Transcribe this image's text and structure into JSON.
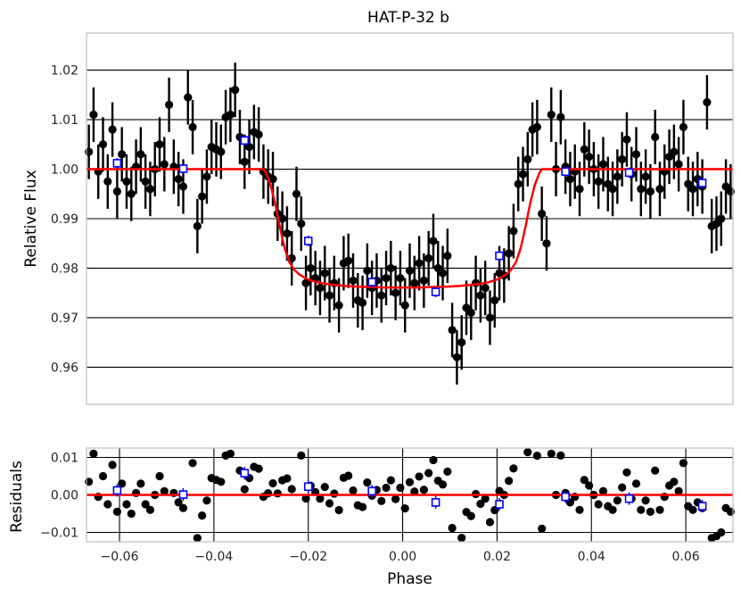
{
  "chart_data": [
    {
      "type": "scatter",
      "title": "HAT-P-32 b",
      "xlabel": "",
      "ylabel": "Relative Flux",
      "xlim": [
        -0.067,
        0.07
      ],
      "ylim": [
        0.9525,
        1.0275
      ],
      "yticks": [
        0.96,
        0.97,
        0.98,
        0.99,
        1.0,
        1.01,
        1.02
      ],
      "ytick_labels": [
        "0.96",
        "0.97",
        "0.98",
        "0.99",
        "1.00",
        "1.01",
        "1.02"
      ],
      "grid": "horizontal",
      "legend": "none",
      "colors": {
        "data": "#000000",
        "binned": "#0000ff",
        "model": "#ff0000",
        "grid": "#000000",
        "frame": "#bfbfbf"
      },
      "model": {
        "name": "",
        "baseline": 1.0,
        "x": [
          -0.067,
          -0.0295,
          -0.029,
          -0.028,
          -0.027,
          -0.026,
          -0.025,
          -0.024,
          -0.023,
          -0.022,
          -0.021,
          -0.02,
          -0.018,
          -0.016,
          -0.014,
          -0.012,
          -0.01,
          -0.008,
          -0.006,
          -0.004,
          -0.002,
          0.0,
          0.002,
          0.004,
          0.006,
          0.008,
          0.01,
          0.012,
          0.014,
          0.016,
          0.018,
          0.02,
          0.021,
          0.022,
          0.023,
          0.024,
          0.025,
          0.026,
          0.027,
          0.028,
          0.029,
          0.0295,
          0.07
        ],
        "y": [
          1.0,
          1.0,
          0.9993,
          0.9968,
          0.993,
          0.9882,
          0.984,
          0.9812,
          0.9797,
          0.9788,
          0.9782,
          0.9777,
          0.9771,
          0.9768,
          0.9766,
          0.9764,
          0.9763,
          0.9762,
          0.9762,
          0.9761,
          0.9761,
          0.9761,
          0.9761,
          0.9761,
          0.9762,
          0.9762,
          0.9763,
          0.9764,
          0.9766,
          0.9768,
          0.9771,
          0.9777,
          0.9782,
          0.9788,
          0.9797,
          0.9812,
          0.984,
          0.9882,
          0.993,
          0.9968,
          0.9993,
          1.0,
          1.0
        ]
      },
      "binned": {
        "x": [
          -0.0605,
          -0.0465,
          -0.0335,
          -0.02,
          -0.0065,
          0.007,
          0.0205,
          0.0345,
          0.048,
          0.0635
        ],
        "y": [
          1.0012,
          1.0001,
          1.0058,
          0.9855,
          0.9772,
          0.9752,
          0.9825,
          0.9995,
          0.9993,
          0.9972
        ],
        "err": [
          0.0005,
          0.0005,
          0.0005,
          0.0005,
          0.0005,
          0.0005,
          0.0005,
          0.0005,
          0.0005,
          0.0005
        ]
      },
      "points": {
        "x": [
          -0.0665,
          -0.0655,
          -0.0645,
          -0.0635,
          -0.0625,
          -0.0615,
          -0.0605,
          -0.0595,
          -0.0585,
          -0.0575,
          -0.0565,
          -0.0555,
          -0.0545,
          -0.0535,
          -0.0525,
          -0.0515,
          -0.0505,
          -0.0495,
          -0.0485,
          -0.0475,
          -0.0465,
          -0.0455,
          -0.0445,
          -0.0435,
          -0.0425,
          -0.0415,
          -0.0405,
          -0.0395,
          -0.0385,
          -0.0375,
          -0.0365,
          -0.0355,
          -0.0345,
          -0.0335,
          -0.0325,
          -0.0315,
          -0.0305,
          -0.0295,
          -0.0285,
          -0.0275,
          -0.0265,
          -0.0255,
          -0.0245,
          -0.0235,
          -0.0225,
          -0.0215,
          -0.0205,
          -0.0195,
          -0.0185,
          -0.0175,
          -0.0165,
          -0.0155,
          -0.0145,
          -0.0135,
          -0.0125,
          -0.0115,
          -0.0105,
          -0.0095,
          -0.0085,
          -0.0075,
          -0.0065,
          -0.0055,
          -0.0045,
          -0.0035,
          -0.0025,
          -0.0015,
          -0.0005,
          0.0005,
          0.0015,
          0.0025,
          0.0035,
          0.0045,
          0.0055,
          0.0065,
          0.0075,
          0.0085,
          0.0095,
          0.0105,
          0.0115,
          0.0125,
          0.0135,
          0.0145,
          0.0155,
          0.0165,
          0.0175,
          0.0185,
          0.0195,
          0.0205,
          0.0215,
          0.0225,
          0.0235,
          0.0245,
          0.0255,
          0.0265,
          0.0275,
          0.0285,
          0.0295,
          0.0305,
          0.0315,
          0.0325,
          0.0335,
          0.0345,
          0.0355,
          0.0365,
          0.0375,
          0.0385,
          0.0395,
          0.0405,
          0.0415,
          0.0425,
          0.0435,
          0.0445,
          0.0455,
          0.0465,
          0.0475,
          0.0485,
          0.0495,
          0.0505,
          0.0515,
          0.0525,
          0.0535,
          0.0545,
          0.0555,
          0.0565,
          0.0575,
          0.0585,
          0.0595,
          0.0605,
          0.0615,
          0.0625,
          0.0635,
          0.0645,
          0.0655,
          0.0665,
          0.0675,
          0.0685,
          0.0695
        ],
        "y": [
          1.0035,
          1.011,
          0.9995,
          1.005,
          0.9975,
          1.008,
          0.9955,
          1.003,
          0.9975,
          0.995,
          1.0005,
          1.003,
          0.9975,
          0.996,
          1.0,
          1.005,
          1.001,
          1.013,
          1.0005,
          0.998,
          0.9965,
          1.0145,
          1.0085,
          0.9885,
          0.9945,
          0.9985,
          1.0045,
          1.004,
          1.0035,
          1.0105,
          1.011,
          1.016,
          1.0065,
          1.0015,
          1.0045,
          1.0075,
          1.007,
          0.9995,
          0.9985,
          0.998,
          0.991,
          0.99,
          0.987,
          0.982,
          0.995,
          0.989,
          0.977,
          0.98,
          0.978,
          0.976,
          0.979,
          0.9745,
          0.977,
          0.9725,
          0.981,
          0.9815,
          0.9775,
          0.9735,
          0.973,
          0.9795,
          0.976,
          0.9775,
          0.9745,
          0.978,
          0.98,
          0.975,
          0.978,
          0.9725,
          0.9795,
          0.977,
          0.981,
          0.9775,
          0.982,
          0.9855,
          0.98,
          0.979,
          0.9825,
          0.9675,
          0.962,
          0.965,
          0.972,
          0.971,
          0.977,
          0.9745,
          0.976,
          0.97,
          0.9735,
          0.979,
          0.9785,
          0.983,
          0.9875,
          0.997,
          0.999,
          1.002,
          1.008,
          1.0085,
          0.991,
          0.985,
          1.011,
          1.0,
          1.0105,
          1.0005,
          0.998,
          0.9995,
          0.996,
          1.004,
          1.0025,
          1.0,
          0.9975,
          1.001,
          0.997,
          0.996,
          0.9985,
          1.002,
          1.006,
          0.999,
          1.003,
          0.996,
          0.9985,
          0.9955,
          1.0065,
          0.996,
          0.9995,
          1.0025,
          1.0035,
          1.001,
          1.0085,
          0.997,
          0.996,
          0.998,
          0.9965,
          1.0135,
          0.9885,
          0.989,
          0.99,
          0.9965,
          0.9955
        ],
        "err": 0.0055
      }
    },
    {
      "type": "scatter",
      "title": "",
      "xlabel": "Phase",
      "ylabel": "Residuals",
      "xlim": [
        -0.067,
        0.07
      ],
      "ylim": [
        -0.0125,
        0.0125
      ],
      "xticks": [
        -0.06,
        -0.04,
        -0.02,
        0.0,
        0.02,
        0.04,
        0.06
      ],
      "xtick_labels": [
        "−0.06",
        "−0.04",
        "−0.02",
        "0.00",
        "0.02",
        "0.04",
        "0.06"
      ],
      "yticks": [
        -0.01,
        0.0,
        0.01
      ],
      "ytick_labels": [
        "−0.01",
        "0.00",
        "0.01"
      ],
      "grid": "both",
      "legend": "none",
      "zero_line": 0.0,
      "binned": {
        "x": [
          -0.0605,
          -0.0465,
          -0.0335,
          -0.02,
          -0.0065,
          0.007,
          0.0205,
          0.0345,
          0.048,
          0.0635
        ],
        "y": [
          0.0012,
          0.0001,
          0.0058,
          0.0022,
          0.001,
          -0.002,
          -0.0025,
          -0.0005,
          -0.001,
          -0.003
        ]
      }
    }
  ]
}
